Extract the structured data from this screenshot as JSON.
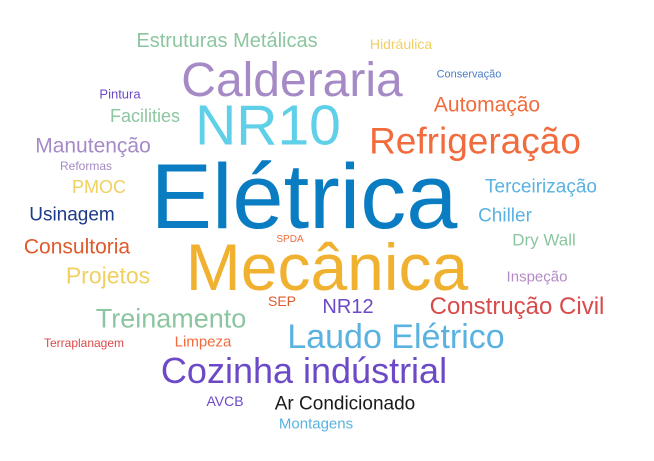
{
  "words": [
    {
      "id": "eletrica",
      "text": "Elétrica",
      "color": "#0a7cc1"
    },
    {
      "id": "mecanica",
      "text": "Mecânica",
      "color": "#f0b030"
    },
    {
      "id": "nr10",
      "text": "NR10",
      "color": "#5fd0e8"
    },
    {
      "id": "calderaria",
      "text": "Calderaria",
      "color": "#a58ac6"
    },
    {
      "id": "refrigeracao",
      "text": "Refrigeração",
      "color": "#f26b3c"
    },
    {
      "id": "cozinha",
      "text": "Cozinha indústrial",
      "color": "#6c49c6"
    },
    {
      "id": "laudo",
      "text": "Laudo Elétrico",
      "color": "#5ab2e0"
    },
    {
      "id": "construcao",
      "text": "Construção Civil",
      "color": "#d94a4a"
    },
    {
      "id": "treinamento",
      "text": "Treinamento",
      "color": "#8cc6a0"
    },
    {
      "id": "automacao",
      "text": "Automação",
      "color": "#f26b3c"
    },
    {
      "id": "estruturas",
      "text": "Estruturas Metálicas",
      "color": "#8cc6a0"
    },
    {
      "id": "manutencao",
      "text": "Manutenção",
      "color": "#a58ac6"
    },
    {
      "id": "projetos",
      "text": "Projetos",
      "color": "#f0d060"
    },
    {
      "id": "consultoria",
      "text": "Consultoria",
      "color": "#e05a2c"
    },
    {
      "id": "terceirizacao",
      "text": "Terceirização",
      "color": "#5ab2e0"
    },
    {
      "id": "ar-condicionado",
      "text": "Ar Condicionado",
      "color": "#1a1a1a"
    },
    {
      "id": "usinagem",
      "text": "Usinagem",
      "color": "#1e3a8a"
    },
    {
      "id": "chiller",
      "text": "Chiller",
      "color": "#5ab2e0"
    },
    {
      "id": "nr12",
      "text": "NR12",
      "color": "#6c49c6"
    },
    {
      "id": "facilities",
      "text": "Facilities",
      "color": "#8cc6a0"
    },
    {
      "id": "dry-wall",
      "text": "Dry Wall",
      "color": "#8cc6a0"
    },
    {
      "id": "pmoc",
      "text": "PMOC",
      "color": "#f0d060"
    },
    {
      "id": "hidraulica",
      "text": "Hidráulica",
      "color": "#f0d060"
    },
    {
      "id": "montagens",
      "text": "Montagens",
      "color": "#5ab2e0"
    },
    {
      "id": "inspecao",
      "text": "Inspeção",
      "color": "#b58ac6"
    },
    {
      "id": "limpeza",
      "text": "Limpeza",
      "color": "#f26b3c"
    },
    {
      "id": "avcb",
      "text": "AVCB",
      "color": "#6c49c6"
    },
    {
      "id": "sep",
      "text": "SEP",
      "color": "#e05a2c"
    },
    {
      "id": "pintura",
      "text": "Pintura",
      "color": "#6c49c6"
    },
    {
      "id": "terraplanagem",
      "text": "Terraplanagem",
      "color": "#d94a4a"
    },
    {
      "id": "reformas",
      "text": "Reformas",
      "color": "#a58ac6"
    },
    {
      "id": "conservacao",
      "text": "Conservação",
      "color": "#4a7cc6"
    },
    {
      "id": "spda",
      "text": "SPDA",
      "color": "#f26b3c"
    }
  ]
}
